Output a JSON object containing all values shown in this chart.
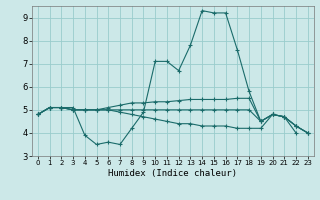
{
  "title": "",
  "xlabel": "Humidex (Indice chaleur)",
  "ylabel": "",
  "xlim": [
    -0.5,
    23.5
  ],
  "ylim": [
    3,
    9.5
  ],
  "yticks": [
    3,
    4,
    5,
    6,
    7,
    8,
    9
  ],
  "xticks": [
    0,
    1,
    2,
    3,
    4,
    5,
    6,
    7,
    8,
    9,
    10,
    11,
    12,
    13,
    14,
    15,
    16,
    17,
    18,
    19,
    20,
    21,
    22,
    23
  ],
  "bg_color": "#cce8e8",
  "grid_color": "#99cccc",
  "line_color": "#1a6b6a",
  "series": [
    [
      4.8,
      5.1,
      5.1,
      5.1,
      3.9,
      3.5,
      3.6,
      3.5,
      4.2,
      4.9,
      7.1,
      7.1,
      6.7,
      7.8,
      9.3,
      9.2,
      9.2,
      7.6,
      5.8,
      4.5,
      4.8,
      4.7,
      4.0,
      null
    ],
    [
      4.8,
      5.1,
      5.1,
      5.0,
      5.0,
      5.0,
      5.1,
      5.2,
      5.3,
      5.3,
      5.35,
      5.35,
      5.4,
      5.45,
      5.45,
      5.45,
      5.45,
      5.5,
      5.5,
      4.5,
      4.8,
      4.7,
      4.3,
      4.0
    ],
    [
      4.8,
      5.1,
      5.1,
      5.0,
      5.0,
      5.0,
      5.0,
      5.0,
      5.0,
      5.0,
      5.0,
      5.0,
      5.0,
      5.0,
      5.0,
      5.0,
      5.0,
      5.0,
      5.0,
      4.5,
      4.8,
      4.7,
      4.3,
      4.0
    ],
    [
      4.8,
      5.1,
      5.1,
      5.0,
      5.0,
      5.0,
      5.0,
      4.9,
      4.8,
      4.7,
      4.6,
      4.5,
      4.4,
      4.4,
      4.3,
      4.3,
      4.3,
      4.2,
      4.2,
      4.2,
      4.8,
      4.7,
      4.3,
      4.0
    ]
  ]
}
